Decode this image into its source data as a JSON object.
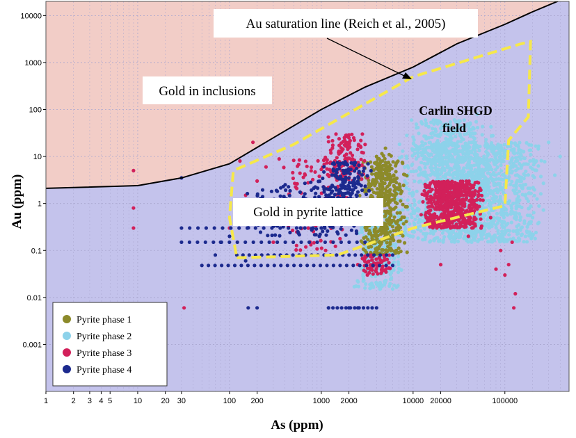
{
  "chart_data": {
    "type": "scatter",
    "xlabel": "As (ppm)",
    "ylabel": "Au (ppm)",
    "x_scale": "log",
    "y_scale": "log",
    "xlim": [
      1,
      500000
    ],
    "ylim": [
      0.0001,
      20000
    ],
    "x_ticks": [
      "1",
      "2",
      "3",
      "4",
      "5",
      "10",
      "20",
      "30",
      "100",
      "200",
      "1000",
      "2000",
      "10000",
      "20000",
      "100000"
    ],
    "y_ticks": [
      "10000",
      "1000",
      "100",
      "10",
      "1",
      "0.1",
      "0.01",
      "0.001"
    ],
    "grid": true,
    "annotations": {
      "saturation_line": "Au saturation line (Reich et al., 2005)",
      "upper_region": "Gold in inclusions",
      "lower_region": "Gold in pyrite lattice",
      "field_label_line1": "Carlin SHGD",
      "field_label_line2": "field"
    },
    "saturation_line_points": [
      [
        1,
        2.1
      ],
      [
        10,
        2.4
      ],
      [
        30,
        3.5
      ],
      [
        100,
        7
      ],
      [
        300,
        25
      ],
      [
        1000,
        100
      ],
      [
        3000,
        300
      ],
      [
        10000,
        800
      ],
      [
        30000,
        2500
      ],
      [
        100000,
        6500
      ],
      [
        200000,
        12000
      ],
      [
        420000,
        22000
      ]
    ],
    "carlin_field_polygon": [
      [
        120,
        0.07
      ],
      [
        1500,
        0.08
      ],
      [
        10000,
        0.3
      ],
      [
        100000,
        0.9
      ],
      [
        110000,
        22
      ],
      [
        180000,
        70
      ],
      [
        190000,
        2800
      ],
      [
        150000,
        2500
      ],
      [
        10000,
        500
      ],
      [
        500,
        18
      ],
      [
        110,
        5
      ],
      [
        100,
        0.5
      ]
    ],
    "legend_position": "bottom-left",
    "colors": {
      "upper_region": "#f2cdc7",
      "lower_region": "#c4c3ec",
      "field_outline": "#f6e84a",
      "phase1": "#8c8a2a",
      "phase2": "#8dd2ea",
      "phase3": "#d2205a",
      "phase4": "#1c2a8e"
    },
    "series": [
      {
        "name": "Pyrite phase 1",
        "color": "#8c8a2a",
        "clusters": [
          {
            "x": [
              2500,
              9000
            ],
            "y": [
              0.08,
              8
            ],
            "n": 460
          },
          {
            "x": [
              3500,
              6000
            ],
            "y": [
              0.3,
              12
            ],
            "n": 60
          }
        ],
        "points": [
          [
            4000,
            10
          ],
          [
            4500,
            6
          ],
          [
            3000,
            0.1
          ],
          [
            2800,
            0.15
          ],
          [
            3500,
            0.12
          ],
          [
            5000,
            15
          ]
        ]
      },
      {
        "name": "Pyrite phase 2",
        "color": "#8dd2ea",
        "clusters": [
          {
            "x": [
              6000,
              300000
            ],
            "y": [
              0.15,
              20
            ],
            "n": 1500
          },
          {
            "x": [
              8000,
              80000
            ],
            "y": [
              4,
              60
            ],
            "n": 260
          },
          {
            "x": [
              2500,
              8000
            ],
            "y": [
              0.05,
              0.6
            ],
            "n": 220
          },
          {
            "x": [
              2000,
              8000
            ],
            "y": [
              0.015,
              0.05
            ],
            "n": 90
          }
        ],
        "points": [
          [
            220000,
            8
          ],
          [
            300000,
            20
          ],
          [
            350000,
            4
          ],
          [
            150000,
            0.3
          ],
          [
            400000,
            10
          ],
          [
            50000,
            80
          ],
          [
            30000,
            40
          ]
        ]
      },
      {
        "name": "Pyrite phase 3",
        "color": "#d2205a",
        "clusters": [
          {
            "x": [
              12000,
              60000
            ],
            "y": [
              0.3,
              3
            ],
            "n": 620
          },
          {
            "x": [
              1000,
              3500
            ],
            "y": [
              3,
              30
            ],
            "n": 130
          },
          {
            "x": [
              300,
              3000
            ],
            "y": [
              0.1,
              10
            ],
            "n": 110
          },
          {
            "x": [
              2500,
              6000
            ],
            "y": [
              0.03,
              0.08
            ],
            "n": 70
          }
        ],
        "points": [
          [
            9,
            5
          ],
          [
            9,
            0.8
          ],
          [
            9,
            0.3
          ],
          [
            130,
            8
          ],
          [
            180,
            20
          ],
          [
            100,
            0.3
          ],
          [
            32,
            0.006
          ],
          [
            20000,
            0.05
          ],
          [
            40000,
            0.2
          ],
          [
            80000,
            0.04
          ],
          [
            110000,
            0.05
          ],
          [
            120000,
            0.15
          ],
          [
            125000,
            0.006
          ],
          [
            130000,
            0.012
          ],
          [
            90000,
            0.1
          ],
          [
            55000,
            0.3
          ],
          [
            70000,
            0.5
          ],
          [
            100000,
            0.03
          ],
          [
            2000,
            25
          ],
          [
            2800,
            30
          ],
          [
            3000,
            18
          ],
          [
            2500,
            0.05
          ],
          [
            150,
            1.5
          ],
          [
            200,
            3
          ],
          [
            250,
            6
          ],
          [
            300,
            0.15
          ]
        ]
      },
      {
        "name": "Pyrite phase 4",
        "color": "#1c2a8e",
        "clusters": [
          {
            "x": [
              1000,
              3500
            ],
            "y": [
              0.5,
              8
            ],
            "n": 220
          },
          {
            "x": [
              120,
              3000
            ],
            "y": [
              0.2,
              3
            ],
            "n": 140
          }
        ],
        "points": [
          [
            30,
            3.5
          ],
          [
            70,
            0.08
          ],
          [
            80,
            0.15
          ],
          [
            100,
            0.2
          ],
          [
            150,
            0.06
          ],
          [
            160,
            0.006
          ],
          [
            200,
            0.006
          ],
          [
            1200,
            0.006
          ],
          [
            2000,
            0.006
          ],
          [
            2500,
            0.006
          ]
        ],
        "rows": [
          {
            "x": [
              30,
              1000
            ],
            "y": 0.3,
            "n": 18
          },
          {
            "x": [
              30,
              3000
            ],
            "y": 0.15,
            "n": 24
          },
          {
            "x": [
              120,
              6000
            ],
            "y": 0.08,
            "n": 26
          },
          {
            "x": [
              50,
              6000
            ],
            "y": 0.048,
            "n": 30
          },
          {
            "x": [
              1200,
              4000
            ],
            "y": 0.006,
            "n": 12
          }
        ]
      }
    ]
  }
}
